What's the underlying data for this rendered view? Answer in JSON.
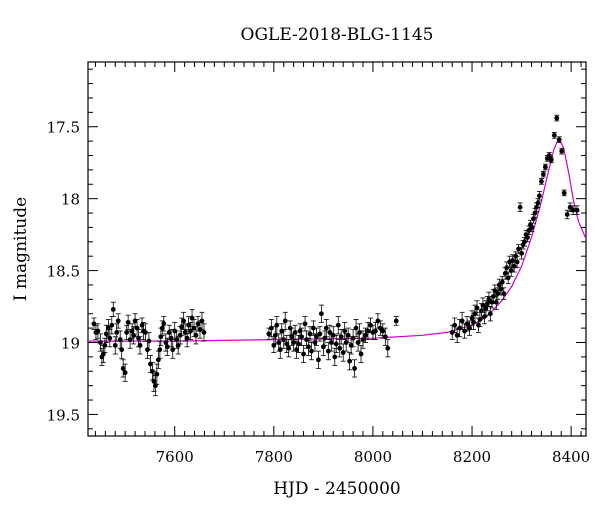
{
  "chart_data": {
    "type": "scatter",
    "title": "OGLE-2018-BLG-1145",
    "xlabel": "HJD - 2450000",
    "ylabel": "I magnitude",
    "xlim": [
      7425,
      8430
    ],
    "ylim": [
      19.65,
      17.05
    ],
    "y_inverted": true,
    "grid": false,
    "x_ticks": [
      {
        "value": 7600,
        "label": "7600"
      },
      {
        "value": 7800,
        "label": "7800"
      },
      {
        "value": 8000,
        "label": "8000"
      },
      {
        "value": 8200,
        "label": "8200"
      },
      {
        "value": 8400,
        "label": "8400"
      }
    ],
    "y_ticks": [
      {
        "value": 17.5,
        "label": "17.5"
      },
      {
        "value": 18,
        "label": "18"
      },
      {
        "value": 18.5,
        "label": "18.5"
      },
      {
        "value": 19,
        "label": "19"
      },
      {
        "value": 19.5,
        "label": "19.5"
      }
    ],
    "colors": {
      "points": "#000000",
      "model": "#cc00cc"
    },
    "model_curve": {
      "x": [
        7425,
        7600,
        7800,
        8000,
        8100,
        8150,
        8200,
        8230,
        8260,
        8280,
        8300,
        8320,
        8340,
        8355,
        8365,
        8375,
        8385,
        8395,
        8405,
        8415,
        8430
      ],
      "y": [
        18.99,
        18.99,
        18.98,
        18.97,
        18.95,
        18.93,
        18.88,
        18.82,
        18.71,
        18.61,
        18.47,
        18.27,
        18.02,
        17.8,
        17.66,
        17.58,
        17.65,
        17.82,
        18.02,
        18.16,
        18.28
      ]
    },
    "series": [
      {
        "x": [
          7437,
          7441,
          7445,
          7450,
          7453,
          7456,
          7459,
          7462,
          7466,
          7469,
          7473,
          7476,
          7480,
          7483,
          7486,
          7490,
          7493,
          7496,
          7500,
          7503,
          7506,
          7510,
          7514,
          7517,
          7520,
          7524,
          7527,
          7530,
          7534,
          7537,
          7541,
          7545,
          7548,
          7551,
          7555,
          7558,
          7561,
          7564,
          7567,
          7570,
          7572,
          7575,
          7578,
          7582,
          7585,
          7589,
          7593,
          7596,
          7600,
          7604,
          7607,
          7611,
          7614,
          7618,
          7621,
          7625,
          7628,
          7632,
          7635,
          7639,
          7643,
          7647,
          7651,
          7655,
          7659
        ],
        "y": [
          18.87,
          18.93,
          18.92,
          19.0,
          19.1,
          19.08,
          19.02,
          18.94,
          18.9,
          18.97,
          18.88,
          18.77,
          19.02,
          18.93,
          18.85,
          18.98,
          19.05,
          19.18,
          19.21,
          18.93,
          18.86,
          18.98,
          18.92,
          18.95,
          18.85,
          18.9,
          18.97,
          19.02,
          18.88,
          18.92,
          18.93,
          19.05,
          18.99,
          19.15,
          19.2,
          19.27,
          19.3,
          19.22,
          19.12,
          19.05,
          18.96,
          18.9,
          18.87,
          19.0,
          19.03,
          18.93,
          18.97,
          19.05,
          18.92,
          18.98,
          19.02,
          18.95,
          18.89,
          18.85,
          18.93,
          18.97,
          18.88,
          18.92,
          18.83,
          18.9,
          18.95,
          18.87,
          18.91,
          18.85,
          18.93
        ],
        "error": [
          0.04,
          0.05,
          0.05,
          0.06,
          0.06,
          0.06,
          0.05,
          0.06,
          0.06,
          0.06,
          0.06,
          0.05,
          0.06,
          0.06,
          0.05,
          0.06,
          0.06,
          0.06,
          0.06,
          0.05,
          0.05,
          0.06,
          0.05,
          0.06,
          0.05,
          0.06,
          0.06,
          0.06,
          0.05,
          0.06,
          0.06,
          0.06,
          0.06,
          0.06,
          0.06,
          0.07,
          0.07,
          0.07,
          0.06,
          0.06,
          0.06,
          0.05,
          0.05,
          0.06,
          0.06,
          0.05,
          0.06,
          0.06,
          0.06,
          0.06,
          0.06,
          0.06,
          0.06,
          0.06,
          0.06,
          0.06,
          0.06,
          0.06,
          0.06,
          0.06,
          0.06,
          0.05,
          0.06,
          0.06,
          0.06
        ]
      },
      {
        "x": [
          7790,
          7795,
          7800,
          7803,
          7806,
          7810,
          7813,
          7816,
          7820,
          7823,
          7826,
          7830,
          7833,
          7836,
          7840,
          7843,
          7846,
          7850,
          7853,
          7856,
          7860,
          7863,
          7866,
          7870,
          7873,
          7876,
          7880,
          7883,
          7886,
          7890,
          7893,
          7896,
          7900,
          7903,
          7906,
          7910,
          7913,
          7916,
          7920,
          7923,
          7926,
          7930,
          7933,
          7936,
          7940,
          7943,
          7946,
          7950,
          7953,
          7956,
          7960,
          7963,
          7966,
          7970,
          7973,
          7976,
          7980,
          7985,
          7990,
          7995,
          8000,
          8005,
          8010,
          8015,
          8020,
          8025,
          8030,
          8047
        ],
        "y": [
          18.94,
          18.9,
          19.02,
          18.95,
          18.88,
          19.0,
          19.05,
          18.92,
          18.98,
          18.85,
          19.01,
          19.04,
          18.9,
          18.96,
          19.0,
          18.93,
          19.05,
          19.01,
          18.92,
          18.96,
          19.08,
          18.87,
          18.98,
          19.03,
          18.94,
          19.06,
          18.9,
          19.0,
          18.96,
          19.12,
          18.94,
          18.8,
          19.03,
          18.97,
          18.9,
          19.06,
          18.93,
          19.0,
          18.95,
          19.1,
          19.01,
          18.88,
          19.04,
          18.96,
          19.07,
          18.92,
          19.0,
          18.95,
          19.13,
          19.02,
          18.97,
          19.18,
          18.9,
          19.0,
          18.93,
          19.08,
          18.98,
          18.95,
          18.92,
          18.88,
          18.93,
          18.92,
          18.85,
          18.9,
          18.92,
          18.96,
          19.04,
          18.85
        ],
        "error": [
          0.04,
          0.06,
          0.05,
          0.06,
          0.06,
          0.06,
          0.06,
          0.05,
          0.06,
          0.06,
          0.06,
          0.06,
          0.05,
          0.06,
          0.06,
          0.05,
          0.06,
          0.06,
          0.05,
          0.06,
          0.06,
          0.05,
          0.06,
          0.06,
          0.05,
          0.06,
          0.05,
          0.06,
          0.06,
          0.06,
          0.05,
          0.06,
          0.06,
          0.05,
          0.06,
          0.06,
          0.05,
          0.06,
          0.06,
          0.06,
          0.06,
          0.06,
          0.06,
          0.05,
          0.06,
          0.06,
          0.06,
          0.05,
          0.06,
          0.06,
          0.06,
          0.06,
          0.06,
          0.06,
          0.06,
          0.06,
          0.06,
          0.05,
          0.06,
          0.05,
          0.05,
          0.06,
          0.05,
          0.05,
          0.05,
          0.06,
          0.06,
          0.03
        ]
      },
      {
        "x": [
          8160,
          8165,
          8170,
          8175,
          8180,
          8185,
          8190,
          8195,
          8200,
          8203,
          8206,
          8210,
          8213,
          8216,
          8219,
          8222,
          8225,
          8228,
          8231,
          8234,
          8237,
          8240,
          8243,
          8246,
          8249,
          8252,
          8255,
          8258,
          8261,
          8264,
          8267,
          8270,
          8273,
          8276,
          8279,
          8282,
          8285,
          8288,
          8291,
          8294,
          8297,
          8300,
          8303,
          8306,
          8309,
          8312,
          8315,
          8318,
          8321,
          8324,
          8327,
          8330,
          8333,
          8336,
          8340,
          8344,
          8348,
          8352,
          8356,
          8360,
          8366,
          8371,
          8376,
          8381,
          8386,
          8392,
          8398,
          8404,
          8412
        ],
        "y": [
          18.93,
          18.88,
          18.95,
          18.9,
          18.85,
          18.92,
          18.87,
          18.9,
          18.83,
          18.86,
          18.8,
          18.76,
          18.88,
          18.84,
          18.78,
          18.74,
          18.82,
          18.76,
          18.73,
          18.7,
          18.8,
          18.72,
          18.68,
          18.64,
          18.72,
          18.66,
          18.6,
          18.63,
          18.58,
          18.66,
          18.52,
          18.48,
          18.55,
          18.44,
          18.5,
          18.43,
          18.47,
          18.4,
          18.44,
          18.35,
          18.06,
          18.38,
          18.32,
          18.3,
          18.25,
          18.27,
          18.22,
          18.18,
          18.2,
          18.14,
          18.1,
          18.06,
          18.03,
          17.98,
          17.88,
          17.83,
          17.78,
          17.72,
          17.7,
          17.73,
          17.56,
          17.44,
          17.59,
          17.67,
          17.96,
          18.11,
          18.06,
          18.08,
          18.08
        ],
        "error": [
          0.05,
          0.05,
          0.05,
          0.06,
          0.06,
          0.05,
          0.05,
          0.05,
          0.05,
          0.05,
          0.06,
          0.05,
          0.05,
          0.05,
          0.05,
          0.05,
          0.05,
          0.05,
          0.05,
          0.05,
          0.05,
          0.04,
          0.05,
          0.04,
          0.05,
          0.04,
          0.04,
          0.04,
          0.04,
          0.04,
          0.04,
          0.04,
          0.04,
          0.04,
          0.04,
          0.04,
          0.04,
          0.03,
          0.04,
          0.03,
          0.03,
          0.04,
          0.03,
          0.03,
          0.03,
          0.03,
          0.03,
          0.03,
          0.03,
          0.03,
          0.03,
          0.03,
          0.03,
          0.03,
          0.02,
          0.02,
          0.02,
          0.02,
          0.02,
          0.02,
          0.02,
          0.02,
          0.02,
          0.02,
          0.02,
          0.03,
          0.03,
          0.03,
          0.03
        ]
      }
    ]
  }
}
